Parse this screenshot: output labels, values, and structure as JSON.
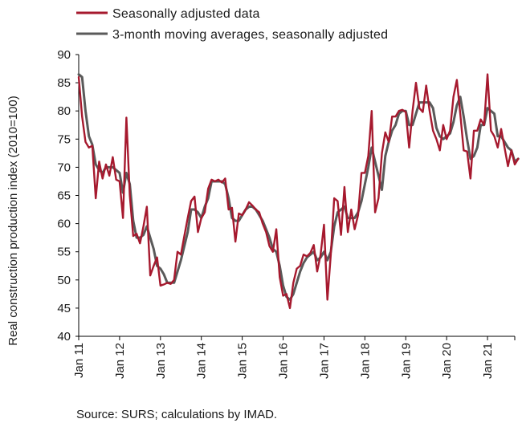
{
  "chart_data": {
    "type": "line",
    "title": "",
    "xlabel": "",
    "ylabel": "Real construction production index (2010=100)",
    "source": "Source: SURS; calculations by IMAD.",
    "ylim": [
      40,
      90
    ],
    "yticks": [
      40,
      45,
      50,
      55,
      60,
      65,
      70,
      75,
      80,
      85,
      90
    ],
    "grid": false,
    "legend_position": "top-left",
    "x_start": "2011-01",
    "x_end": "2021-09",
    "x_tick_labels": [
      "Jan 11",
      "Jan 12",
      "Jan 13",
      "Jan 14",
      "Jan 15",
      "Jan 16",
      "Jan 17",
      "Jan 18",
      "Jan 19",
      "Jan 20",
      "Jan 21"
    ],
    "series": [
      {
        "name": "Seasonally adjusted data",
        "color": "#a6192e",
        "values": [
          86.0,
          79.0,
          74.5,
          73.5,
          73.8,
          64.5,
          71.0,
          68.0,
          70.5,
          68.5,
          71.8,
          67.8,
          67.5,
          61.0,
          78.8,
          65.0,
          57.8,
          58.2,
          56.5,
          59.5,
          63.0,
          50.8,
          52.5,
          54.0,
          49.0,
          49.2,
          49.5,
          49.3,
          50.0,
          55.0,
          54.5,
          57.8,
          61.0,
          64.0,
          64.8,
          58.5,
          61.0,
          62.0,
          66.2,
          67.8,
          67.5,
          67.8,
          67.3,
          68.0,
          62.5,
          62.8,
          56.8,
          61.8,
          61.5,
          62.5,
          63.8,
          63.2,
          62.5,
          62.0,
          60.0,
          58.5,
          56.0,
          55.0,
          59.0,
          50.5,
          47.2,
          47.5,
          45.0,
          49.5,
          52.0,
          52.5,
          54.5,
          54.2,
          54.8,
          56.2,
          51.5,
          54.5,
          59.8,
          46.5,
          54.5,
          64.5,
          64.0,
          58.0,
          66.5,
          58.5,
          62.5,
          59.0,
          61.5,
          69.0,
          69.0,
          72.0,
          80.0,
          62.0,
          64.5,
          72.5,
          76.2,
          74.5,
          79.0,
          79.0,
          80.0,
          80.2,
          79.8,
          73.5,
          80.0,
          85.0,
          80.5,
          79.8,
          84.5,
          80.0,
          76.5,
          75.0,
          73.0,
          77.5,
          75.0,
          76.5,
          82.5,
          85.5,
          79.5,
          73.0,
          72.8,
          68.0,
          76.5,
          76.5,
          78.5,
          77.5,
          86.5,
          76.5,
          75.5,
          73.5,
          76.8,
          73.5,
          70.2,
          73.0,
          70.5,
          71.5
        ]
      },
      {
        "name": "3-month moving averages, seasonally adjusted",
        "color": "#5a5a5a",
        "values": [
          86.5,
          86.0,
          80.0,
          75.5,
          74.0,
          70.5,
          69.5,
          69.0,
          70.0,
          70.0,
          70.0,
          69.5,
          69.0,
          65.5,
          69.0,
          67.0,
          60.5,
          57.5,
          57.5,
          58.0,
          59.5,
          57.5,
          55.5,
          52.5,
          52.0,
          51.0,
          49.5,
          49.5,
          49.5,
          51.5,
          53.5,
          56.0,
          58.5,
          62.5,
          62.5,
          62.0,
          61.0,
          63.0,
          64.5,
          67.5,
          67.5,
          67.5,
          67.5,
          67.0,
          64.5,
          61.0,
          60.5,
          60.5,
          61.5,
          62.5,
          63.0,
          63.0,
          62.5,
          61.5,
          60.5,
          59.0,
          57.5,
          55.5,
          55.0,
          52.5,
          49.0,
          47.0,
          46.5,
          47.5,
          49.5,
          51.5,
          53.0,
          54.0,
          54.5,
          55.0,
          53.5,
          54.0,
          55.0,
          53.5,
          55.0,
          59.5,
          62.0,
          62.5,
          63.0,
          61.0,
          61.0,
          61.0,
          62.0,
          64.0,
          67.0,
          70.0,
          73.5,
          71.0,
          68.5,
          66.0,
          72.0,
          74.5,
          76.5,
          77.5,
          79.5,
          80.0,
          80.0,
          77.5,
          77.5,
          79.5,
          81.5,
          81.5,
          81.5,
          81.5,
          80.5,
          77.0,
          75.5,
          75.0,
          75.5,
          76.0,
          78.0,
          81.0,
          82.5,
          79.0,
          75.0,
          71.5,
          72.0,
          73.5,
          77.5,
          77.5,
          80.5,
          80.0,
          79.5,
          75.5,
          75.5,
          74.5,
          73.5,
          73.0,
          71.0,
          71.5
        ]
      }
    ]
  }
}
